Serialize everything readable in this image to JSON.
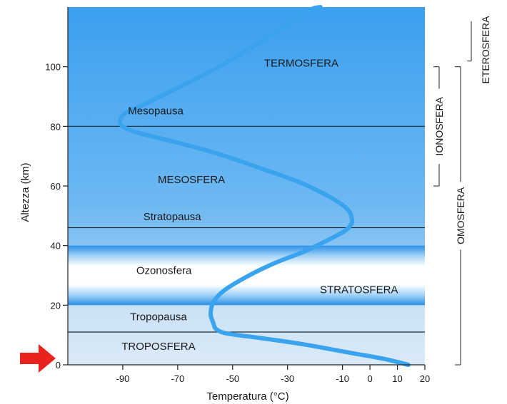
{
  "chart_data": {
    "type": "line",
    "xlabel": "Temperatura (°C)",
    "ylabel": "Altezza (km)",
    "xlim": [
      -110,
      20
    ],
    "ylim": [
      0,
      120
    ],
    "xticks": [
      -90,
      -70,
      -50,
      -30,
      -10,
      0,
      10,
      20
    ],
    "yticks": [
      0,
      20,
      40,
      60,
      80,
      100
    ],
    "grid": false,
    "series": [
      {
        "color": "#3aa3ee",
        "points": [
          [
            14,
            0
          ],
          [
            5,
            2
          ],
          [
            -10,
            4.5
          ],
          [
            -25,
            7
          ],
          [
            -40,
            9
          ],
          [
            -52,
            10.5
          ],
          [
            -56,
            12
          ],
          [
            -57,
            14
          ],
          [
            -58,
            17
          ],
          [
            -57,
            21
          ],
          [
            -53,
            25
          ],
          [
            -45,
            29.5
          ],
          [
            -35,
            34
          ],
          [
            -24,
            38
          ],
          [
            -15,
            42
          ],
          [
            -9,
            45
          ],
          [
            -7,
            47
          ],
          [
            -6.5,
            48.5
          ],
          [
            -8,
            52
          ],
          [
            -14,
            56
          ],
          [
            -25,
            61
          ],
          [
            -40,
            66
          ],
          [
            -56,
            71
          ],
          [
            -72,
            75
          ],
          [
            -85,
            78
          ],
          [
            -90,
            80
          ],
          [
            -91,
            82
          ],
          [
            -89,
            84.5
          ],
          [
            -83,
            87
          ],
          [
            -72,
            92
          ],
          [
            -57,
            99
          ],
          [
            -44,
            106
          ],
          [
            -32,
            113
          ],
          [
            -22,
            119
          ],
          [
            -18,
            120
          ]
        ]
      }
    ],
    "boundaries": [
      {
        "name": "Tropopausa",
        "altitude_km": 11
      },
      {
        "name": "Stratopausa",
        "altitude_km": 46
      },
      {
        "name": "Mesopausa",
        "altitude_km": 80
      }
    ],
    "layers": [
      {
        "name": "TROPOSFERA",
        "from_km": 0,
        "to_km": 11
      },
      {
        "name": "STRATOSFERA",
        "from_km": 11,
        "to_km": 46
      },
      {
        "name": "MESOSFERA",
        "from_km": 46,
        "to_km": 80
      },
      {
        "name": "TERMOSFERA",
        "from_km": 80,
        "to_km": 120
      }
    ],
    "ozone_band": {
      "name": "Ozonosfera",
      "from_km": 20,
      "to_km": 40
    },
    "annotations": [
      {
        "text": "TERMOSFERA",
        "x": -25,
        "y": 100
      },
      {
        "text": "Mesopausa",
        "x": -78,
        "y": 84
      },
      {
        "text": "MESOSFERA",
        "x": -65,
        "y": 61
      },
      {
        "text": "Stratopausa",
        "x": -72,
        "y": 48.5
      },
      {
        "text": "Ozonosfera",
        "x": -75,
        "y": 30.5
      },
      {
        "text": "STRATOSFERA",
        "x": -4,
        "y": 24
      },
      {
        "text": "Tropopausa",
        "x": -77,
        "y": 15
      },
      {
        "text": "TROPOSFERA",
        "x": -77,
        "y": 5
      }
    ],
    "side_scales": [
      {
        "name": "ETEROSFERA",
        "from_km": 100,
        "to_km": 120
      },
      {
        "name": "IONOSFERA",
        "from_km": 60,
        "to_km": 100
      },
      {
        "name": "OMOSFERA",
        "from_km": 0,
        "to_km": 100
      }
    ],
    "colors": {
      "sky_top": "#3b9ff0",
      "sky_bottom": "#cfe3f5",
      "curve": "#3aa3ee",
      "pointer_arrow": "#e8221c"
    }
  }
}
